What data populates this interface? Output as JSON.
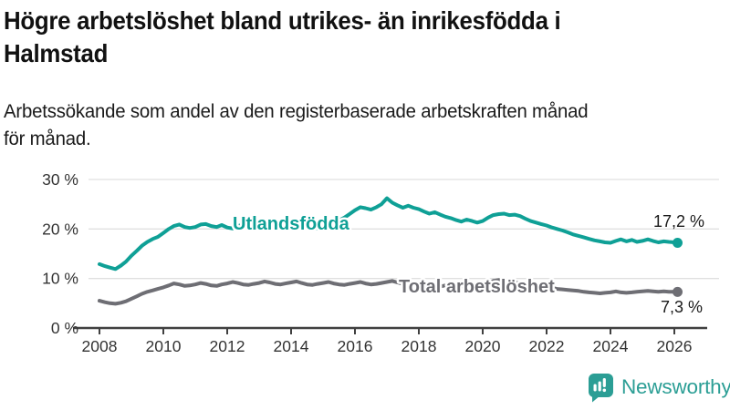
{
  "title": {
    "line1": "Högre arbetslöshet bland utrikes- än inrikesfödda i",
    "line2": "Halmstad"
  },
  "subtitle": {
    "line1": "Arbetssökande som andel av den registerbaserade arbetskraften månad",
    "line2": "för månad."
  },
  "branding": {
    "logo_text": "Newsworthy",
    "logo_icon": "bar-chart-speech-bubble",
    "logo_color": "#2b9e95"
  },
  "colors": {
    "accent_teal": "#0fa096",
    "line_gray": "#6e6e74",
    "grid": "#e0e0e0",
    "axis": "#404040",
    "text_dark": "#1a1a1a",
    "tick_text": "#333333"
  },
  "chart_data": {
    "type": "line",
    "title": "Högre arbetslöshet bland utrikes- än inrikesfödda i Halmstad",
    "subtitle": "Arbetssökande som andel av den registerbaserade arbetskraften månad för månad.",
    "unit": "%",
    "grid": true,
    "legend_position": "inline-labels",
    "x_axis": {
      "min": 2007.85,
      "max": 2026.6,
      "tick_years": [
        2008,
        2010,
        2012,
        2014,
        2016,
        2018,
        2020,
        2022,
        2024,
        2026
      ]
    },
    "y_axis": {
      "min": 0,
      "max": 30,
      "ticks": [
        {
          "value": 0,
          "label": "0 %"
        },
        {
          "value": 10,
          "label": "10 %"
        },
        {
          "value": 20,
          "label": "20 %"
        },
        {
          "value": 30,
          "label": "30 %"
        }
      ]
    },
    "series": [
      {
        "name": "Utlandsfödda",
        "color": "#0fa096",
        "end_label": "17,2 %",
        "end_value": 17.2,
        "points": [
          [
            2008.0,
            12.9
          ],
          [
            2008.17,
            12.5
          ],
          [
            2008.33,
            12.2
          ],
          [
            2008.5,
            11.9
          ],
          [
            2008.67,
            12.6
          ],
          [
            2008.83,
            13.4
          ],
          [
            2009.0,
            14.6
          ],
          [
            2009.17,
            15.6
          ],
          [
            2009.33,
            16.6
          ],
          [
            2009.5,
            17.4
          ],
          [
            2009.67,
            18.0
          ],
          [
            2009.83,
            18.4
          ],
          [
            2010.0,
            19.2
          ],
          [
            2010.17,
            20.0
          ],
          [
            2010.33,
            20.6
          ],
          [
            2010.5,
            20.9
          ],
          [
            2010.67,
            20.4
          ],
          [
            2010.83,
            20.2
          ],
          [
            2011.0,
            20.4
          ],
          [
            2011.17,
            20.9
          ],
          [
            2011.33,
            21.0
          ],
          [
            2011.5,
            20.6
          ],
          [
            2011.67,
            20.4
          ],
          [
            2011.83,
            20.8
          ],
          [
            2012.0,
            20.3
          ],
          [
            2012.17,
            20.1
          ],
          [
            2012.33,
            20.6
          ],
          [
            2012.5,
            20.9
          ],
          [
            2012.67,
            20.6
          ],
          [
            2012.83,
            20.2
          ],
          [
            2013.0,
            20.0
          ],
          [
            2013.17,
            20.4
          ],
          [
            2013.33,
            21.0
          ],
          [
            2013.5,
            21.2
          ],
          [
            2013.67,
            20.8
          ],
          [
            2013.83,
            20.4
          ],
          [
            2014.0,
            20.2
          ],
          [
            2014.17,
            20.6
          ],
          [
            2014.33,
            20.9
          ],
          [
            2014.5,
            20.7
          ],
          [
            2014.67,
            20.3
          ],
          [
            2014.83,
            20.1
          ],
          [
            2015.0,
            20.3
          ],
          [
            2015.17,
            20.7
          ],
          [
            2015.33,
            21.2
          ],
          [
            2015.5,
            21.7
          ],
          [
            2015.67,
            22.3
          ],
          [
            2015.83,
            23.0
          ],
          [
            2016.0,
            23.8
          ],
          [
            2016.17,
            24.4
          ],
          [
            2016.33,
            24.2
          ],
          [
            2016.5,
            23.9
          ],
          [
            2016.67,
            24.4
          ],
          [
            2016.83,
            25.0
          ],
          [
            2017.0,
            26.2
          ],
          [
            2017.17,
            25.3
          ],
          [
            2017.33,
            24.8
          ],
          [
            2017.5,
            24.3
          ],
          [
            2017.67,
            24.7
          ],
          [
            2017.83,
            24.3
          ],
          [
            2018.0,
            24.0
          ],
          [
            2018.17,
            23.5
          ],
          [
            2018.33,
            23.1
          ],
          [
            2018.5,
            23.4
          ],
          [
            2018.67,
            22.9
          ],
          [
            2018.83,
            22.5
          ],
          [
            2019.0,
            22.2
          ],
          [
            2019.17,
            21.8
          ],
          [
            2019.33,
            21.5
          ],
          [
            2019.5,
            21.9
          ],
          [
            2019.67,
            21.6
          ],
          [
            2019.83,
            21.3
          ],
          [
            2020.0,
            21.6
          ],
          [
            2020.17,
            22.3
          ],
          [
            2020.33,
            22.8
          ],
          [
            2020.5,
            23.0
          ],
          [
            2020.67,
            23.1
          ],
          [
            2020.83,
            22.8
          ],
          [
            2021.0,
            22.9
          ],
          [
            2021.17,
            22.6
          ],
          [
            2021.33,
            22.1
          ],
          [
            2021.5,
            21.6
          ],
          [
            2021.67,
            21.3
          ],
          [
            2021.83,
            21.0
          ],
          [
            2022.0,
            20.7
          ],
          [
            2022.17,
            20.3
          ],
          [
            2022.33,
            20.0
          ],
          [
            2022.5,
            19.7
          ],
          [
            2022.67,
            19.3
          ],
          [
            2022.83,
            18.9
          ],
          [
            2023.0,
            18.6
          ],
          [
            2023.17,
            18.3
          ],
          [
            2023.33,
            18.0
          ],
          [
            2023.5,
            17.7
          ],
          [
            2023.67,
            17.5
          ],
          [
            2023.83,
            17.3
          ],
          [
            2024.0,
            17.2
          ],
          [
            2024.17,
            17.6
          ],
          [
            2024.33,
            17.9
          ],
          [
            2024.5,
            17.5
          ],
          [
            2024.67,
            17.8
          ],
          [
            2024.83,
            17.4
          ],
          [
            2025.0,
            17.6
          ],
          [
            2025.17,
            17.9
          ],
          [
            2025.33,
            17.6
          ],
          [
            2025.5,
            17.3
          ],
          [
            2025.67,
            17.5
          ],
          [
            2025.83,
            17.4
          ],
          [
            2026.0,
            17.3
          ],
          [
            2026.1,
            17.2
          ]
        ]
      },
      {
        "name": "Total arbetslöshet",
        "color": "#6e6e74",
        "end_label": "7,3 %",
        "end_value": 7.3,
        "points": [
          [
            2008.0,
            5.5
          ],
          [
            2008.17,
            5.2
          ],
          [
            2008.33,
            5.0
          ],
          [
            2008.5,
            4.9
          ],
          [
            2008.67,
            5.1
          ],
          [
            2008.83,
            5.4
          ],
          [
            2009.0,
            5.9
          ],
          [
            2009.17,
            6.4
          ],
          [
            2009.33,
            6.9
          ],
          [
            2009.5,
            7.3
          ],
          [
            2009.67,
            7.6
          ],
          [
            2009.83,
            7.9
          ],
          [
            2010.0,
            8.2
          ],
          [
            2010.17,
            8.6
          ],
          [
            2010.33,
            9.0
          ],
          [
            2010.5,
            8.8
          ],
          [
            2010.67,
            8.5
          ],
          [
            2010.83,
            8.6
          ],
          [
            2011.0,
            8.8
          ],
          [
            2011.17,
            9.1
          ],
          [
            2011.33,
            8.9
          ],
          [
            2011.5,
            8.6
          ],
          [
            2011.67,
            8.5
          ],
          [
            2011.83,
            8.8
          ],
          [
            2012.0,
            9.0
          ],
          [
            2012.17,
            9.3
          ],
          [
            2012.33,
            9.1
          ],
          [
            2012.5,
            8.8
          ],
          [
            2012.67,
            8.7
          ],
          [
            2012.83,
            8.9
          ],
          [
            2013.0,
            9.1
          ],
          [
            2013.17,
            9.4
          ],
          [
            2013.33,
            9.2
          ],
          [
            2013.5,
            8.9
          ],
          [
            2013.67,
            8.8
          ],
          [
            2013.83,
            9.0
          ],
          [
            2014.0,
            9.2
          ],
          [
            2014.17,
            9.4
          ],
          [
            2014.33,
            9.1
          ],
          [
            2014.5,
            8.8
          ],
          [
            2014.67,
            8.7
          ],
          [
            2014.83,
            8.9
          ],
          [
            2015.0,
            9.1
          ],
          [
            2015.17,
            9.3
          ],
          [
            2015.33,
            9.0
          ],
          [
            2015.5,
            8.8
          ],
          [
            2015.67,
            8.7
          ],
          [
            2015.83,
            8.9
          ],
          [
            2016.0,
            9.1
          ],
          [
            2016.17,
            9.3
          ],
          [
            2016.33,
            9.0
          ],
          [
            2016.5,
            8.8
          ],
          [
            2016.67,
            8.9
          ],
          [
            2016.83,
            9.1
          ],
          [
            2017.0,
            9.3
          ],
          [
            2017.17,
            9.5
          ],
          [
            2017.33,
            9.2
          ],
          [
            2017.5,
            8.9
          ],
          [
            2017.67,
            8.8
          ],
          [
            2017.83,
            9.0
          ],
          [
            2018.0,
            9.1
          ],
          [
            2018.17,
            8.9
          ],
          [
            2018.33,
            8.7
          ],
          [
            2018.5,
            8.5
          ],
          [
            2018.67,
            8.4
          ],
          [
            2018.83,
            8.6
          ],
          [
            2019.0,
            8.7
          ],
          [
            2019.17,
            8.5
          ],
          [
            2019.33,
            8.4
          ],
          [
            2019.5,
            8.3
          ],
          [
            2019.67,
            8.2
          ],
          [
            2019.83,
            8.4
          ],
          [
            2020.0,
            8.5
          ],
          [
            2020.17,
            9.0
          ],
          [
            2020.33,
            9.5
          ],
          [
            2020.5,
            9.7
          ],
          [
            2020.67,
            9.5
          ],
          [
            2020.83,
            9.3
          ],
          [
            2021.0,
            9.2
          ],
          [
            2021.17,
            9.0
          ],
          [
            2021.33,
            8.8
          ],
          [
            2021.5,
            8.6
          ],
          [
            2021.67,
            8.5
          ],
          [
            2021.83,
            8.4
          ],
          [
            2022.0,
            8.3
          ],
          [
            2022.17,
            8.1
          ],
          [
            2022.33,
            7.9
          ],
          [
            2022.5,
            7.8
          ],
          [
            2022.67,
            7.7
          ],
          [
            2022.83,
            7.6
          ],
          [
            2023.0,
            7.5
          ],
          [
            2023.17,
            7.3
          ],
          [
            2023.33,
            7.2
          ],
          [
            2023.5,
            7.1
          ],
          [
            2023.67,
            7.0
          ],
          [
            2023.83,
            7.1
          ],
          [
            2024.0,
            7.2
          ],
          [
            2024.17,
            7.4
          ],
          [
            2024.33,
            7.2
          ],
          [
            2024.5,
            7.1
          ],
          [
            2024.67,
            7.2
          ],
          [
            2024.83,
            7.3
          ],
          [
            2025.0,
            7.4
          ],
          [
            2025.17,
            7.5
          ],
          [
            2025.33,
            7.4
          ],
          [
            2025.5,
            7.3
          ],
          [
            2025.67,
            7.4
          ],
          [
            2025.83,
            7.3
          ],
          [
            2026.0,
            7.3
          ],
          [
            2026.1,
            7.3
          ]
        ]
      }
    ]
  }
}
